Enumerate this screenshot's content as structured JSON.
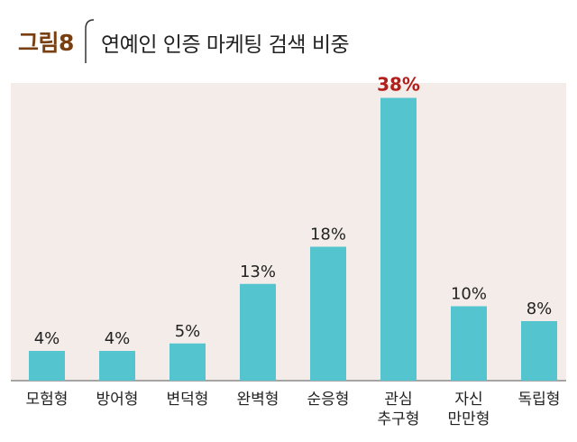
{
  "figure": {
    "label": "그림8",
    "title": "연예인 인증 마케팅 검색 비중"
  },
  "colors": {
    "bar": "#54c4cf",
    "highlight_label": "#b0201c",
    "plot_background": "#f3ece8",
    "figure_label": "#7a3f10"
  },
  "chart_data": {
    "type": "bar",
    "title": "연예인 인증 마케팅 검색 비중",
    "categories": [
      "모험형",
      "방어형",
      "변덕형",
      "완벽형",
      "순응형",
      "관심 추구형",
      "자신 만만형",
      "독립형"
    ],
    "category_lines": [
      [
        "모험형"
      ],
      [
        "방어형"
      ],
      [
        "변덕형"
      ],
      [
        "완벽형"
      ],
      [
        "순응형"
      ],
      [
        "관심",
        "추구형"
      ],
      [
        "자신",
        "만만형"
      ],
      [
        "독립형"
      ]
    ],
    "values": [
      4,
      4,
      5,
      13,
      18,
      38,
      10,
      8
    ],
    "value_labels": [
      "4%",
      "4%",
      "5%",
      "13%",
      "18%",
      "38%",
      "10%",
      "8%"
    ],
    "highlight_index": 5,
    "unit": "%",
    "ylim": [
      0,
      40
    ],
    "grid": false,
    "legend": "none"
  }
}
